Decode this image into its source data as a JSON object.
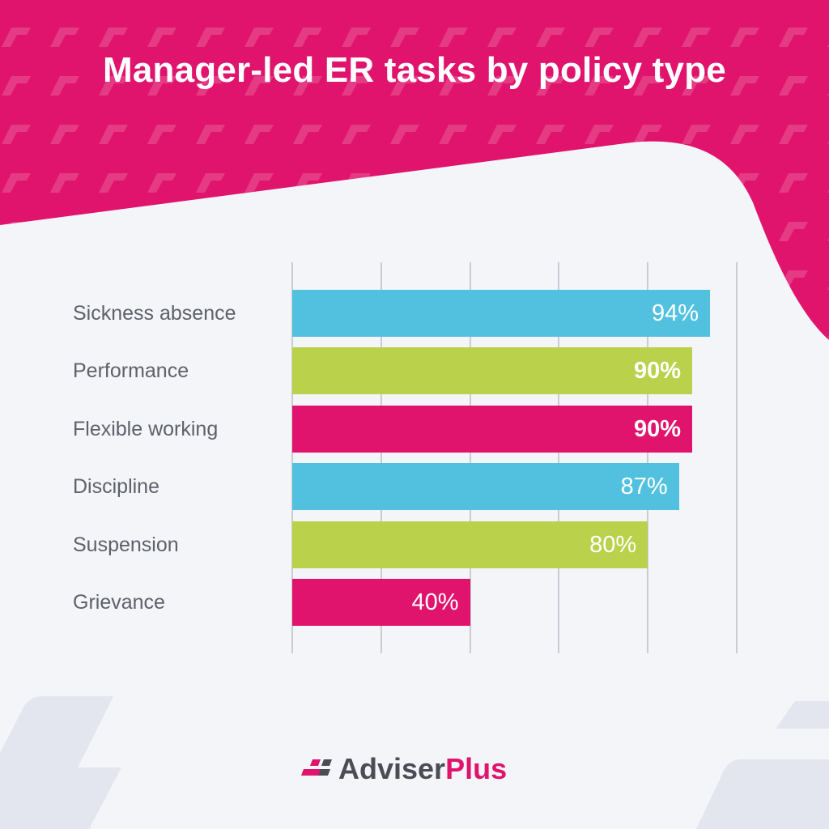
{
  "title": "Manager-led ER tasks by policy type",
  "colors": {
    "pink": "#e0146c",
    "blue": "#52c1e0",
    "green": "#b9d14b",
    "background": "#f4f5f9"
  },
  "logo": {
    "part1": "Adviser",
    "part2": "Plus",
    "icon": "brand-mark-icon"
  },
  "chart_data": {
    "type": "bar",
    "orientation": "horizontal",
    "categories": [
      "Sickness absence",
      "Performance",
      "Flexible working",
      "Discipline",
      "Suspension",
      "Grievance"
    ],
    "values": [
      94,
      90,
      90,
      87,
      80,
      40
    ],
    "value_labels": [
      "94%",
      "90%",
      "90%",
      "87%",
      "80%",
      "40%"
    ],
    "bar_colors": [
      "#52c1e0",
      "#b9d14b",
      "#e0146c",
      "#52c1e0",
      "#b9d14b",
      "#e0146c"
    ],
    "title": "Manager-led ER tasks by policy type",
    "xlim": [
      0,
      100
    ],
    "grid": true,
    "legend": "none"
  }
}
